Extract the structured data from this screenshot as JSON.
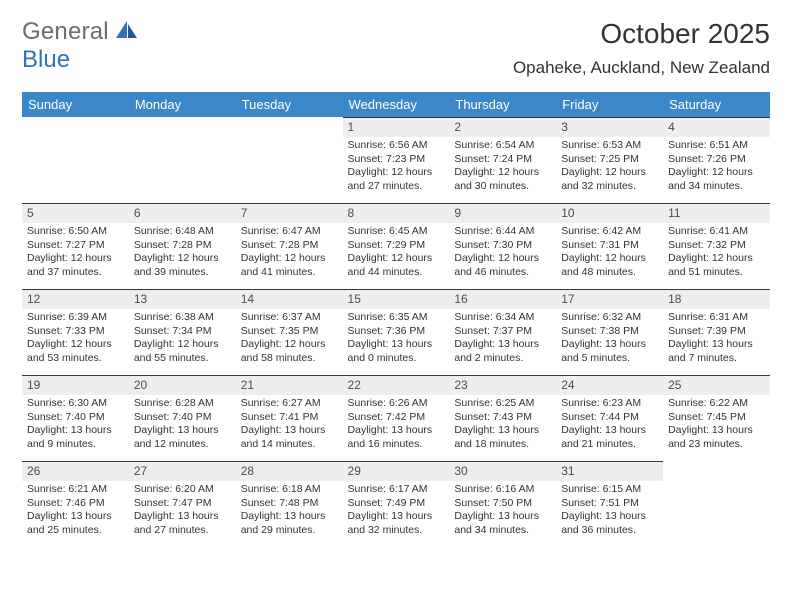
{
  "logo": {
    "general": "General",
    "blue": "Blue"
  },
  "title": "October 2025",
  "location": "Opaheke, Auckland, New Zealand",
  "colors": {
    "header_bg": "#3b87c8",
    "header_fg": "#ffffff",
    "daybar_bg": "#eeeeee",
    "daybar_border": "#2b3a4a",
    "text": "#333333",
    "logo_gray": "#6d6d6d",
    "logo_blue": "#2f74b5"
  },
  "weekdays": [
    "Sunday",
    "Monday",
    "Tuesday",
    "Wednesday",
    "Thursday",
    "Friday",
    "Saturday"
  ],
  "cells": [
    {
      "day": "",
      "sunrise": "",
      "sunset": "",
      "daylight": ""
    },
    {
      "day": "",
      "sunrise": "",
      "sunset": "",
      "daylight": ""
    },
    {
      "day": "",
      "sunrise": "",
      "sunset": "",
      "daylight": ""
    },
    {
      "day": "1",
      "sunrise": "Sunrise: 6:56 AM",
      "sunset": "Sunset: 7:23 PM",
      "daylight": "Daylight: 12 hours and 27 minutes."
    },
    {
      "day": "2",
      "sunrise": "Sunrise: 6:54 AM",
      "sunset": "Sunset: 7:24 PM",
      "daylight": "Daylight: 12 hours and 30 minutes."
    },
    {
      "day": "3",
      "sunrise": "Sunrise: 6:53 AM",
      "sunset": "Sunset: 7:25 PM",
      "daylight": "Daylight: 12 hours and 32 minutes."
    },
    {
      "day": "4",
      "sunrise": "Sunrise: 6:51 AM",
      "sunset": "Sunset: 7:26 PM",
      "daylight": "Daylight: 12 hours and 34 minutes."
    },
    {
      "day": "5",
      "sunrise": "Sunrise: 6:50 AM",
      "sunset": "Sunset: 7:27 PM",
      "daylight": "Daylight: 12 hours and 37 minutes."
    },
    {
      "day": "6",
      "sunrise": "Sunrise: 6:48 AM",
      "sunset": "Sunset: 7:28 PM",
      "daylight": "Daylight: 12 hours and 39 minutes."
    },
    {
      "day": "7",
      "sunrise": "Sunrise: 6:47 AM",
      "sunset": "Sunset: 7:28 PM",
      "daylight": "Daylight: 12 hours and 41 minutes."
    },
    {
      "day": "8",
      "sunrise": "Sunrise: 6:45 AM",
      "sunset": "Sunset: 7:29 PM",
      "daylight": "Daylight: 12 hours and 44 minutes."
    },
    {
      "day": "9",
      "sunrise": "Sunrise: 6:44 AM",
      "sunset": "Sunset: 7:30 PM",
      "daylight": "Daylight: 12 hours and 46 minutes."
    },
    {
      "day": "10",
      "sunrise": "Sunrise: 6:42 AM",
      "sunset": "Sunset: 7:31 PM",
      "daylight": "Daylight: 12 hours and 48 minutes."
    },
    {
      "day": "11",
      "sunrise": "Sunrise: 6:41 AM",
      "sunset": "Sunset: 7:32 PM",
      "daylight": "Daylight: 12 hours and 51 minutes."
    },
    {
      "day": "12",
      "sunrise": "Sunrise: 6:39 AM",
      "sunset": "Sunset: 7:33 PM",
      "daylight": "Daylight: 12 hours and 53 minutes."
    },
    {
      "day": "13",
      "sunrise": "Sunrise: 6:38 AM",
      "sunset": "Sunset: 7:34 PM",
      "daylight": "Daylight: 12 hours and 55 minutes."
    },
    {
      "day": "14",
      "sunrise": "Sunrise: 6:37 AM",
      "sunset": "Sunset: 7:35 PM",
      "daylight": "Daylight: 12 hours and 58 minutes."
    },
    {
      "day": "15",
      "sunrise": "Sunrise: 6:35 AM",
      "sunset": "Sunset: 7:36 PM",
      "daylight": "Daylight: 13 hours and 0 minutes."
    },
    {
      "day": "16",
      "sunrise": "Sunrise: 6:34 AM",
      "sunset": "Sunset: 7:37 PM",
      "daylight": "Daylight: 13 hours and 2 minutes."
    },
    {
      "day": "17",
      "sunrise": "Sunrise: 6:32 AM",
      "sunset": "Sunset: 7:38 PM",
      "daylight": "Daylight: 13 hours and 5 minutes."
    },
    {
      "day": "18",
      "sunrise": "Sunrise: 6:31 AM",
      "sunset": "Sunset: 7:39 PM",
      "daylight": "Daylight: 13 hours and 7 minutes."
    },
    {
      "day": "19",
      "sunrise": "Sunrise: 6:30 AM",
      "sunset": "Sunset: 7:40 PM",
      "daylight": "Daylight: 13 hours and 9 minutes."
    },
    {
      "day": "20",
      "sunrise": "Sunrise: 6:28 AM",
      "sunset": "Sunset: 7:40 PM",
      "daylight": "Daylight: 13 hours and 12 minutes."
    },
    {
      "day": "21",
      "sunrise": "Sunrise: 6:27 AM",
      "sunset": "Sunset: 7:41 PM",
      "daylight": "Daylight: 13 hours and 14 minutes."
    },
    {
      "day": "22",
      "sunrise": "Sunrise: 6:26 AM",
      "sunset": "Sunset: 7:42 PM",
      "daylight": "Daylight: 13 hours and 16 minutes."
    },
    {
      "day": "23",
      "sunrise": "Sunrise: 6:25 AM",
      "sunset": "Sunset: 7:43 PM",
      "daylight": "Daylight: 13 hours and 18 minutes."
    },
    {
      "day": "24",
      "sunrise": "Sunrise: 6:23 AM",
      "sunset": "Sunset: 7:44 PM",
      "daylight": "Daylight: 13 hours and 21 minutes."
    },
    {
      "day": "25",
      "sunrise": "Sunrise: 6:22 AM",
      "sunset": "Sunset: 7:45 PM",
      "daylight": "Daylight: 13 hours and 23 minutes."
    },
    {
      "day": "26",
      "sunrise": "Sunrise: 6:21 AM",
      "sunset": "Sunset: 7:46 PM",
      "daylight": "Daylight: 13 hours and 25 minutes."
    },
    {
      "day": "27",
      "sunrise": "Sunrise: 6:20 AM",
      "sunset": "Sunset: 7:47 PM",
      "daylight": "Daylight: 13 hours and 27 minutes."
    },
    {
      "day": "28",
      "sunrise": "Sunrise: 6:18 AM",
      "sunset": "Sunset: 7:48 PM",
      "daylight": "Daylight: 13 hours and 29 minutes."
    },
    {
      "day": "29",
      "sunrise": "Sunrise: 6:17 AM",
      "sunset": "Sunset: 7:49 PM",
      "daylight": "Daylight: 13 hours and 32 minutes."
    },
    {
      "day": "30",
      "sunrise": "Sunrise: 6:16 AM",
      "sunset": "Sunset: 7:50 PM",
      "daylight": "Daylight: 13 hours and 34 minutes."
    },
    {
      "day": "31",
      "sunrise": "Sunrise: 6:15 AM",
      "sunset": "Sunset: 7:51 PM",
      "daylight": "Daylight: 13 hours and 36 minutes."
    },
    {
      "day": "",
      "sunrise": "",
      "sunset": "",
      "daylight": ""
    }
  ]
}
